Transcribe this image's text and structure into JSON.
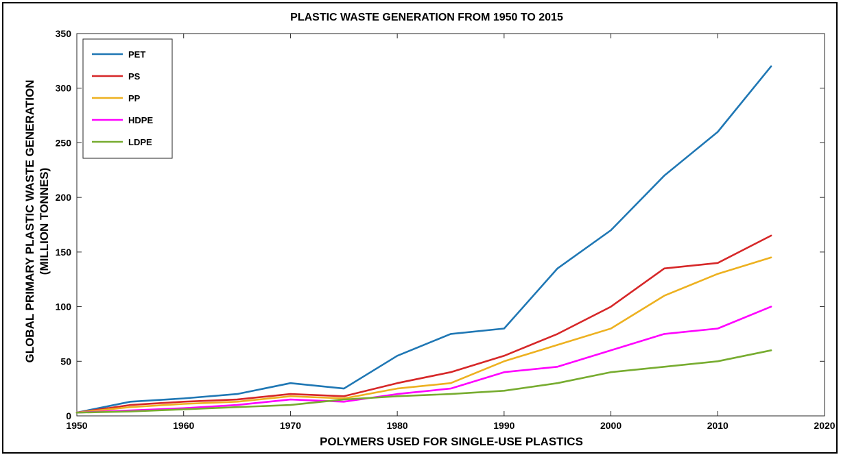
{
  "chart_data": {
    "type": "line",
    "title": "PLASTIC WASTE GENERATION FROM 1950 TO 2015",
    "xlabel": "POLYMERS USED FOR SINGLE-USE PLASTICS",
    "ylabel_line1": "GLOBAL PRIMARY PLASTIC WASTE GENERATION",
    "ylabel_line2": "(MILLION TONNES)",
    "xlim": [
      1950,
      2020
    ],
    "ylim": [
      0,
      350
    ],
    "xticks": [
      1950,
      1960,
      1970,
      1980,
      1990,
      2000,
      2010,
      2020
    ],
    "yticks": [
      0,
      50,
      100,
      150,
      200,
      250,
      300,
      350
    ],
    "grid": false,
    "legend_position": "top-left",
    "x": [
      1950,
      1955,
      1960,
      1965,
      1970,
      1975,
      1980,
      1985,
      1990,
      1995,
      2000,
      2005,
      2010,
      2015
    ],
    "series": [
      {
        "name": "PET",
        "color": "#1f77b4",
        "values": [
          3,
          13,
          16,
          20,
          30,
          25,
          55,
          75,
          80,
          135,
          170,
          220,
          260,
          320
        ]
      },
      {
        "name": "PS",
        "color": "#d62728",
        "values": [
          3,
          10,
          13,
          15,
          20,
          18,
          30,
          40,
          55,
          75,
          100,
          135,
          140,
          165
        ]
      },
      {
        "name": "PP",
        "color": "#edb120",
        "values": [
          3,
          8,
          11,
          13,
          18,
          16,
          25,
          30,
          50,
          65,
          80,
          110,
          130,
          145
        ]
      },
      {
        "name": "HDPE",
        "color": "#ff00ff",
        "values": [
          3,
          5,
          7,
          10,
          15,
          13,
          20,
          25,
          40,
          45,
          60,
          75,
          80,
          100
        ]
      },
      {
        "name": "LDPE",
        "color": "#77ac30",
        "values": [
          3,
          4,
          6,
          8,
          10,
          15,
          18,
          20,
          23,
          30,
          40,
          45,
          50,
          60
        ]
      }
    ]
  }
}
